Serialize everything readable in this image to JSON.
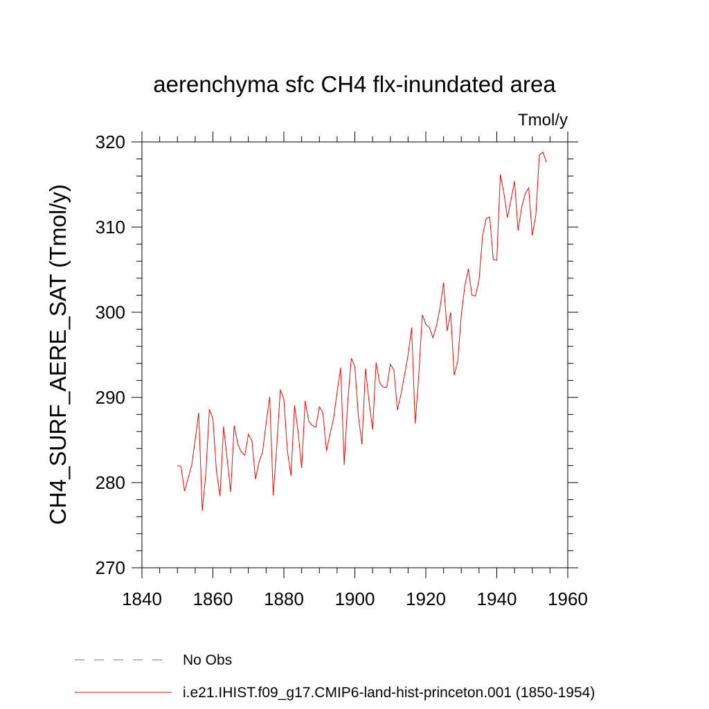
{
  "chart_data": {
    "type": "line",
    "title": "aerenchyma sfc CH4 flx-inundated area",
    "units": "Tmol/y",
    "xlabel": "",
    "ylabel": "CH4_SURF_AERE_SAT  (Tmol/y)",
    "xlim": [
      1840,
      1960
    ],
    "ylim": [
      270,
      320
    ],
    "xticks": [
      1840,
      1860,
      1880,
      1900,
      1920,
      1940,
      1960
    ],
    "yticks": [
      270,
      280,
      290,
      300,
      310,
      320
    ],
    "grid": false,
    "legend_position": "bottom",
    "series": [
      {
        "name": "No Obs",
        "color": "#7b6bb0",
        "style": "dashed",
        "x": [],
        "values": []
      },
      {
        "name": "i.e21.IHIST.f09_g17.CMIP6-land-hist-princeton.001 (1850-1954)",
        "color": "#ff0000",
        "style": "solid",
        "x": [
          1850,
          1851,
          1852,
          1853,
          1854,
          1855,
          1856,
          1857,
          1858,
          1859,
          1860,
          1861,
          1862,
          1863,
          1864,
          1865,
          1866,
          1867,
          1868,
          1869,
          1870,
          1871,
          1872,
          1873,
          1874,
          1875,
          1876,
          1877,
          1878,
          1879,
          1880,
          1881,
          1882,
          1883,
          1884,
          1885,
          1886,
          1887,
          1888,
          1889,
          1890,
          1891,
          1892,
          1893,
          1894,
          1895,
          1896,
          1897,
          1898,
          1899,
          1900,
          1901,
          1902,
          1903,
          1904,
          1905,
          1906,
          1907,
          1908,
          1909,
          1910,
          1911,
          1912,
          1913,
          1914,
          1915,
          1916,
          1917,
          1918,
          1919,
          1920,
          1921,
          1922,
          1923,
          1924,
          1925,
          1926,
          1927,
          1928,
          1929,
          1930,
          1931,
          1932,
          1933,
          1934,
          1935,
          1936,
          1937,
          1938,
          1939,
          1940,
          1941,
          1942,
          1943,
          1944,
          1945,
          1946,
          1947,
          1948,
          1949,
          1950,
          1951,
          1952,
          1953,
          1954
        ],
        "values": [
          282.0,
          281.9,
          279.0,
          280.5,
          282.0,
          285.0,
          288.2,
          276.7,
          281.0,
          288.6,
          287.5,
          281.3,
          278.4,
          286.6,
          282.8,
          278.9,
          286.7,
          284.5,
          283.6,
          283.2,
          285.7,
          284.9,
          280.4,
          282.4,
          283.6,
          287.0,
          290.1,
          278.5,
          284.3,
          290.9,
          289.8,
          283.7,
          280.8,
          289.1,
          286.0,
          281.7,
          289.6,
          287.2,
          286.7,
          286.5,
          288.9,
          288.2,
          283.7,
          285.7,
          287.5,
          290.6,
          293.5,
          282.1,
          289.5,
          294.6,
          293.6,
          287.8,
          284.5,
          293.4,
          289.5,
          286.2,
          294.1,
          291.7,
          291.2,
          291.2,
          293.9,
          293.2,
          288.5,
          290.4,
          292.6,
          295.0,
          298.2,
          286.9,
          292.5,
          299.7,
          298.6,
          298.2,
          297.0,
          298.4,
          300.5,
          303.5,
          297.8,
          300.0,
          292.6,
          294.3,
          299.7,
          303.1,
          305.1,
          302.0,
          301.9,
          303.8,
          309.0,
          311.0,
          311.2,
          306.2,
          306.1,
          316.2,
          314.0,
          311.1,
          313.2,
          315.4,
          309.6,
          312.3,
          313.9,
          314.6,
          309.0,
          311.4,
          318.5,
          318.8,
          317.6
        ]
      }
    ]
  }
}
